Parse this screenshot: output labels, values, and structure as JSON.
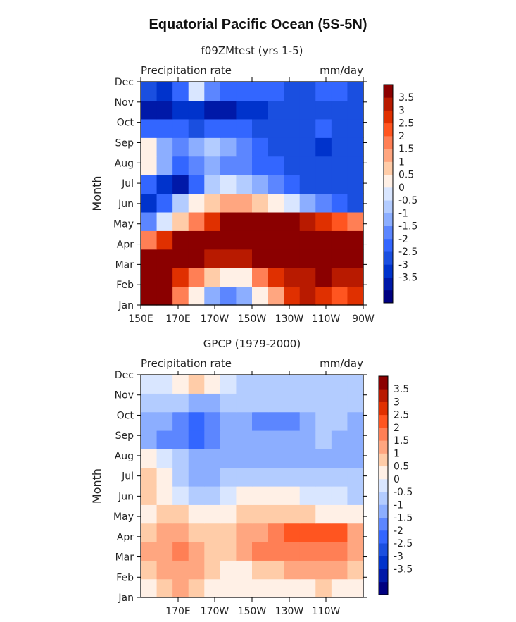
{
  "title": "Equatorial Pacific Ocean (5S-5N)",
  "colors": {
    "levels": [
      "#000080",
      "#0019a8",
      "#0033cc",
      "#1a4fe0",
      "#3366ff",
      "#5c86ff",
      "#8caeff",
      "#b3ccff",
      "#d9e6ff",
      "#fff0e6",
      "#ffcca8",
      "#ffa680",
      "#ff7f55",
      "#ff5520",
      "#e03000",
      "#b81a00",
      "#8b0000"
    ]
  },
  "chart_data": [
    {
      "type": "heatmap",
      "panel_title": "f09ZMtest (yrs 1-5)",
      "left_label": "Precipitation rate",
      "right_label": "mm/day",
      "ylabel": "Month",
      "x_ticks": [
        "150E",
        "170E",
        "170W",
        "150W",
        "130W",
        "110W",
        "90W"
      ],
      "y_ticks": [
        "Jan",
        "Feb",
        "Mar",
        "Apr",
        "May",
        "Jun",
        "Jul",
        "Aug",
        "Sep",
        "Oct",
        "Nov",
        "Dec"
      ],
      "xlim": [
        "150E",
        "90W"
      ],
      "colorbar_labels": [
        "3.5",
        "3",
        "2.5",
        "2",
        "1.5",
        "1",
        "0.5",
        "0",
        "-0.5",
        "-1",
        "-1.5",
        "-2",
        "-2.5",
        "-3",
        "-3.5"
      ],
      "z": [
        [
          4,
          4,
          2,
          0.5,
          -1,
          -1.5,
          -1,
          0.5,
          1.5,
          3,
          3.5,
          3,
          2.5,
          3
        ],
        [
          4,
          4,
          3,
          2,
          1,
          0.5,
          0.5,
          2,
          3,
          3.5,
          3.5,
          4,
          3.5,
          3.5
        ],
        [
          4,
          4,
          4,
          4,
          3.5,
          3.5,
          3.5,
          4,
          4,
          4,
          4,
          4,
          4,
          4
        ],
        [
          2,
          3,
          4,
          4,
          4,
          4,
          4,
          4,
          4,
          4,
          4,
          4,
          4,
          4
        ],
        [
          -1.5,
          0,
          1,
          2,
          3,
          4,
          4,
          4,
          4,
          4,
          3.5,
          3,
          2.5,
          2
        ],
        [
          -3,
          -2,
          -0.5,
          0.5,
          1,
          1.5,
          1.5,
          1,
          0.5,
          0,
          -1,
          -1.5,
          -2,
          -2.5
        ],
        [
          -2,
          -3,
          -3.5,
          -2,
          -0.5,
          0,
          -0.5,
          -1,
          -1.5,
          -2,
          -2.5,
          -2.5,
          -2.5,
          -2.5
        ],
        [
          0.5,
          -1,
          -2,
          -1.5,
          -1,
          -1.5,
          -1.5,
          -2,
          -2,
          -2.5,
          -2.5,
          -2.5,
          -2.5,
          -2.5
        ],
        [
          0.5,
          -1,
          -1.5,
          -1,
          -0.5,
          -1,
          -1.5,
          -2,
          -2.5,
          -2.5,
          -2.5,
          -3,
          -2.5,
          -2.5
        ],
        [
          -2,
          -2,
          -2,
          -2.5,
          -2,
          -2,
          -2,
          -2.5,
          -2.5,
          -2.5,
          -2.5,
          -2,
          -2.5,
          -2.5
        ],
        [
          -3.5,
          -3.5,
          -3,
          -3,
          -3.5,
          -3.5,
          -3,
          -3,
          -2.5,
          -2.5,
          -2.5,
          -2.5,
          -2.5,
          -2.5
        ],
        [
          -2.5,
          -3,
          -2,
          0,
          -1.5,
          -2,
          -2,
          -2,
          -2,
          -2.5,
          -2.5,
          -2,
          -2,
          -2.5
        ]
      ]
    },
    {
      "type": "heatmap",
      "panel_title": "GPCP (1979-2000)",
      "left_label": "Precipitation rate",
      "right_label": "mm/day",
      "ylabel": "Month",
      "x_ticks": [
        "170E",
        "170W",
        "150W",
        "130W",
        "110W"
      ],
      "y_ticks": [
        "Jan",
        "Feb",
        "Mar",
        "Apr",
        "May",
        "Jun",
        "Jul",
        "Aug",
        "Sep",
        "Oct",
        "Nov",
        "Dec"
      ],
      "colorbar_labels": [
        "3.5",
        "3",
        "2.5",
        "2",
        "1.5",
        "1",
        "0.5",
        "0",
        "-0.5",
        "-1",
        "-1.5",
        "-2",
        "-2.5",
        "-3",
        "-3.5"
      ],
      "z": [
        [
          0.5,
          1,
          1.5,
          1,
          0.5,
          0.5,
          0.5,
          0.5,
          0.5,
          0.5,
          0.5,
          1,
          0.5,
          0.5
        ],
        [
          1,
          1.5,
          1.5,
          1.5,
          1,
          0.5,
          0.5,
          1,
          1,
          1.5,
          1.5,
          1.5,
          1.5,
          1
        ],
        [
          1.5,
          1.5,
          2,
          1.5,
          1,
          1,
          1.5,
          2,
          2,
          2,
          2,
          2,
          2,
          1.5
        ],
        [
          1,
          1.5,
          1.5,
          1,
          1,
          1,
          1.5,
          1.5,
          2,
          2.5,
          2.5,
          2.5,
          2.5,
          1.5
        ],
        [
          0.5,
          1,
          1,
          0.5,
          0.5,
          0.5,
          1,
          1,
          1,
          1,
          1,
          0.5,
          0.5,
          0.5
        ],
        [
          1,
          0.5,
          0,
          -0.5,
          -0.5,
          0,
          0.5,
          0.5,
          0.5,
          0.5,
          0,
          0,
          0,
          -0.5
        ],
        [
          1,
          0.5,
          -0.5,
          -1,
          -1,
          -0.5,
          -0.5,
          -0.5,
          -0.5,
          -0.5,
          -0.5,
          -0.5,
          -0.5,
          -0.5
        ],
        [
          0.5,
          0,
          -0.5,
          -1,
          -1,
          -1,
          -1,
          -1,
          -1,
          -1,
          -1,
          -1,
          -1,
          -1
        ],
        [
          -1,
          -1.5,
          -1.5,
          -2,
          -1.5,
          -1,
          -1,
          -1,
          -1,
          -1,
          -1,
          -0.5,
          -1,
          -1
        ],
        [
          -1,
          -1,
          -1.5,
          -2,
          -1.5,
          -1,
          -1,
          -1.5,
          -1.5,
          -1.5,
          -1,
          -0.5,
          -0.5,
          -1
        ],
        [
          -0.5,
          -0.5,
          -0.5,
          -1,
          -1,
          -0.5,
          -0.5,
          -0.5,
          -0.5,
          -0.5,
          -0.5,
          -0.5,
          -0.5,
          -0.5
        ],
        [
          0,
          0,
          0.5,
          1,
          0.5,
          0,
          -0.5,
          -0.5,
          -0.5,
          -0.5,
          -0.5,
          -0.5,
          -0.5,
          -0.5
        ]
      ]
    }
  ]
}
